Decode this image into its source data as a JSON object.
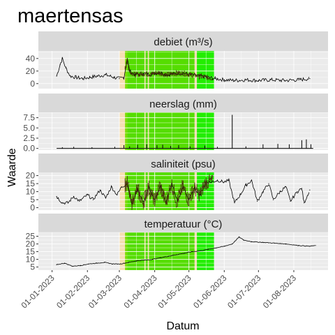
{
  "chart_data": {
    "type": "line",
    "title": "maertensas",
    "xlabel": "Datum",
    "ylabel": "Waarde",
    "x_range": [
      "2022-12-20",
      "2023-08-31"
    ],
    "x_ticks": [
      "01-01-2023",
      "01-02-2023",
      "01-03-2023",
      "01-04-2023",
      "01-05-2023",
      "01-06-2023",
      "01-07-2023",
      "01-08-2023"
    ],
    "grid": true,
    "background_bands": [
      {
        "start": "2023-03-01",
        "end": "2023-03-06",
        "color": "#f5deb3"
      },
      {
        "start": "2023-03-06",
        "end": "2023-03-08",
        "color": "#77dd00"
      },
      {
        "start": "2023-03-08",
        "end": "2023-03-23",
        "color": "#55dd00"
      },
      {
        "start": "2023-03-23",
        "end": "2023-03-24",
        "color": "#f5deb3"
      },
      {
        "start": "2023-03-24",
        "end": "2023-03-26",
        "color": "#55dd00"
      },
      {
        "start": "2023-03-26",
        "end": "2023-03-27",
        "color": "#f5deb3"
      },
      {
        "start": "2023-03-27",
        "end": "2023-04-01",
        "color": "#55dd00"
      },
      {
        "start": "2023-04-01",
        "end": "2023-05-06",
        "color": "#55dd00"
      },
      {
        "start": "2023-05-06",
        "end": "2023-05-08",
        "color": "#f5deb3"
      },
      {
        "start": "2023-05-08",
        "end": "2023-05-23",
        "color": "#22ee00"
      }
    ],
    "panels": [
      {
        "label": "debiet (m³/s)",
        "ylim": [
          -8,
          52
        ],
        "yticks": [
          0,
          20,
          40
        ],
        "points": [
          [
            "2023-01-05",
            12
          ],
          [
            "2023-01-08",
            30
          ],
          [
            "2023-01-10",
            40
          ],
          [
            "2023-01-13",
            25
          ],
          [
            "2023-01-17",
            12
          ],
          [
            "2023-01-22",
            10
          ],
          [
            "2023-01-28",
            8
          ],
          [
            "2023-02-03",
            10
          ],
          [
            "2023-02-10",
            12
          ],
          [
            "2023-02-17",
            14
          ],
          [
            "2023-02-24",
            10
          ],
          [
            "2023-03-01",
            8
          ],
          [
            "2023-03-05",
            10
          ],
          [
            "2023-03-08",
            40
          ],
          [
            "2023-03-10",
            20
          ],
          [
            "2023-03-15",
            14
          ],
          [
            "2023-03-22",
            16
          ],
          [
            "2023-03-29",
            15
          ],
          [
            "2023-04-05",
            18
          ],
          [
            "2023-04-12",
            14
          ],
          [
            "2023-04-19",
            16
          ],
          [
            "2023-04-26",
            17
          ],
          [
            "2023-05-03",
            14
          ],
          [
            "2023-05-10",
            12
          ],
          [
            "2023-05-17",
            10
          ],
          [
            "2023-05-24",
            8
          ],
          [
            "2023-06-01",
            6
          ],
          [
            "2023-06-10",
            5
          ],
          [
            "2023-06-20",
            6
          ],
          [
            "2023-07-01",
            5
          ],
          [
            "2023-07-12",
            6
          ],
          [
            "2023-07-24",
            5
          ],
          [
            "2023-08-05",
            6
          ],
          [
            "2023-08-15",
            8
          ]
        ]
      },
      {
        "label": "neerslag (mm)",
        "ylim": [
          -0.4,
          8.8
        ],
        "yticks": [
          0.0,
          2.5,
          5.0,
          7.5
        ],
        "yticklabels": [
          "0.0",
          "2.5",
          "5.0",
          "7.5"
        ],
        "spikes": [
          [
            "2023-01-10",
            0.3
          ],
          [
            "2023-01-20",
            0.4
          ],
          [
            "2023-02-05",
            0.3
          ],
          [
            "2023-02-25",
            0.4
          ],
          [
            "2023-03-05",
            0.8
          ],
          [
            "2023-03-10",
            0.5
          ],
          [
            "2023-03-17",
            0.9
          ],
          [
            "2023-03-25",
            1.0
          ],
          [
            "2023-04-03",
            0.8
          ],
          [
            "2023-04-08",
            0.9
          ],
          [
            "2023-04-15",
            0.6
          ],
          [
            "2023-04-22",
            0.8
          ],
          [
            "2023-05-02",
            0.5
          ],
          [
            "2023-05-15",
            0.7
          ],
          [
            "2023-05-26",
            0.4
          ],
          [
            "2023-06-08",
            8.2
          ],
          [
            "2023-06-20",
            0.5
          ],
          [
            "2023-07-05",
            1.0
          ],
          [
            "2023-07-18",
            1.1
          ],
          [
            "2023-07-28",
            1.0
          ],
          [
            "2023-08-08",
            2.0
          ],
          [
            "2023-08-12",
            2.2
          ],
          [
            "2023-08-16",
            1.0
          ]
        ]
      },
      {
        "label": "saliniteit (psu)",
        "ylim": [
          -1.5,
          22
        ],
        "yticks": [
          0,
          5,
          10,
          15,
          20
        ],
        "points": [
          [
            "2023-01-05",
            7
          ],
          [
            "2023-01-10",
            3
          ],
          [
            "2023-01-15",
            3
          ],
          [
            "2023-01-20",
            7
          ],
          [
            "2023-01-25",
            4
          ],
          [
            "2023-02-01",
            8
          ],
          [
            "2023-02-06",
            5
          ],
          [
            "2023-02-12",
            11
          ],
          [
            "2023-02-17",
            6
          ],
          [
            "2023-02-22",
            13
          ],
          [
            "2023-02-27",
            8
          ],
          [
            "2023-03-03",
            13
          ],
          [
            "2023-03-08",
            15
          ],
          [
            "2023-03-12",
            2
          ],
          [
            "2023-03-17",
            12
          ],
          [
            "2023-03-22",
            3
          ],
          [
            "2023-03-27",
            13
          ],
          [
            "2023-04-01",
            4
          ],
          [
            "2023-04-06",
            14
          ],
          [
            "2023-04-11",
            3
          ],
          [
            "2023-04-16",
            15
          ],
          [
            "2023-04-21",
            4
          ],
          [
            "2023-04-26",
            13
          ],
          [
            "2023-05-01",
            5
          ],
          [
            "2023-05-06",
            12
          ],
          [
            "2023-05-11",
            8
          ],
          [
            "2023-05-16",
            16
          ],
          [
            "2023-05-21",
            16
          ],
          [
            "2023-05-26",
            17
          ],
          [
            "2023-06-01",
            16
          ],
          [
            "2023-06-05",
            17
          ],
          [
            "2023-06-10",
            3
          ],
          [
            "2023-06-15",
            8
          ],
          [
            "2023-06-20",
            14
          ],
          [
            "2023-06-25",
            17
          ],
          [
            "2023-06-30",
            4
          ],
          [
            "2023-07-05",
            10
          ],
          [
            "2023-07-10",
            15
          ],
          [
            "2023-07-14",
            5
          ],
          [
            "2023-07-20",
            10
          ],
          [
            "2023-07-25",
            13
          ],
          [
            "2023-07-29",
            4
          ],
          [
            "2023-08-04",
            10
          ],
          [
            "2023-08-08",
            12
          ],
          [
            "2023-08-10",
            3
          ],
          [
            "2023-08-15",
            11
          ]
        ]
      },
      {
        "label": "temperatuur (°C)",
        "ylim": [
          3,
          27.5
        ],
        "yticks": [
          5,
          10,
          15,
          20,
          25
        ],
        "points": [
          [
            "2023-01-05",
            6.5
          ],
          [
            "2023-01-12",
            7.5
          ],
          [
            "2023-01-19",
            5.5
          ],
          [
            "2023-01-26",
            6.0
          ],
          [
            "2023-02-02",
            7.0
          ],
          [
            "2023-02-09",
            7.5
          ],
          [
            "2023-02-16",
            8.0
          ],
          [
            "2023-02-23",
            7.0
          ],
          [
            "2023-03-02",
            7.0
          ],
          [
            "2023-03-09",
            8.0
          ],
          [
            "2023-03-16",
            9.0
          ],
          [
            "2023-03-23",
            9.5
          ],
          [
            "2023-03-30",
            10.0
          ],
          [
            "2023-04-06",
            11.0
          ],
          [
            "2023-04-13",
            12.0
          ],
          [
            "2023-04-20",
            13.0
          ],
          [
            "2023-04-27",
            14.0
          ],
          [
            "2023-05-04",
            15.0
          ],
          [
            "2023-05-11",
            15.5
          ],
          [
            "2023-05-18",
            16.5
          ],
          [
            "2023-05-25",
            17.5
          ],
          [
            "2023-06-01",
            18.5
          ],
          [
            "2023-06-08",
            20.0
          ],
          [
            "2023-06-14",
            24.5
          ],
          [
            "2023-06-18",
            22.5
          ],
          [
            "2023-06-25",
            21.5
          ],
          [
            "2023-07-05",
            21.0
          ],
          [
            "2023-07-15",
            20.5
          ],
          [
            "2023-07-25",
            20.0
          ],
          [
            "2023-08-05",
            19.0
          ],
          [
            "2023-08-15",
            18.5
          ],
          [
            "2023-08-20",
            19.0
          ]
        ]
      }
    ]
  },
  "colors": {
    "strip_bg": "#d9d9d9",
    "panel_bg": "#ebebeb",
    "grid": "#ffffff",
    "series_line": "#000000",
    "dense_overlay": "#4a2a10"
  }
}
